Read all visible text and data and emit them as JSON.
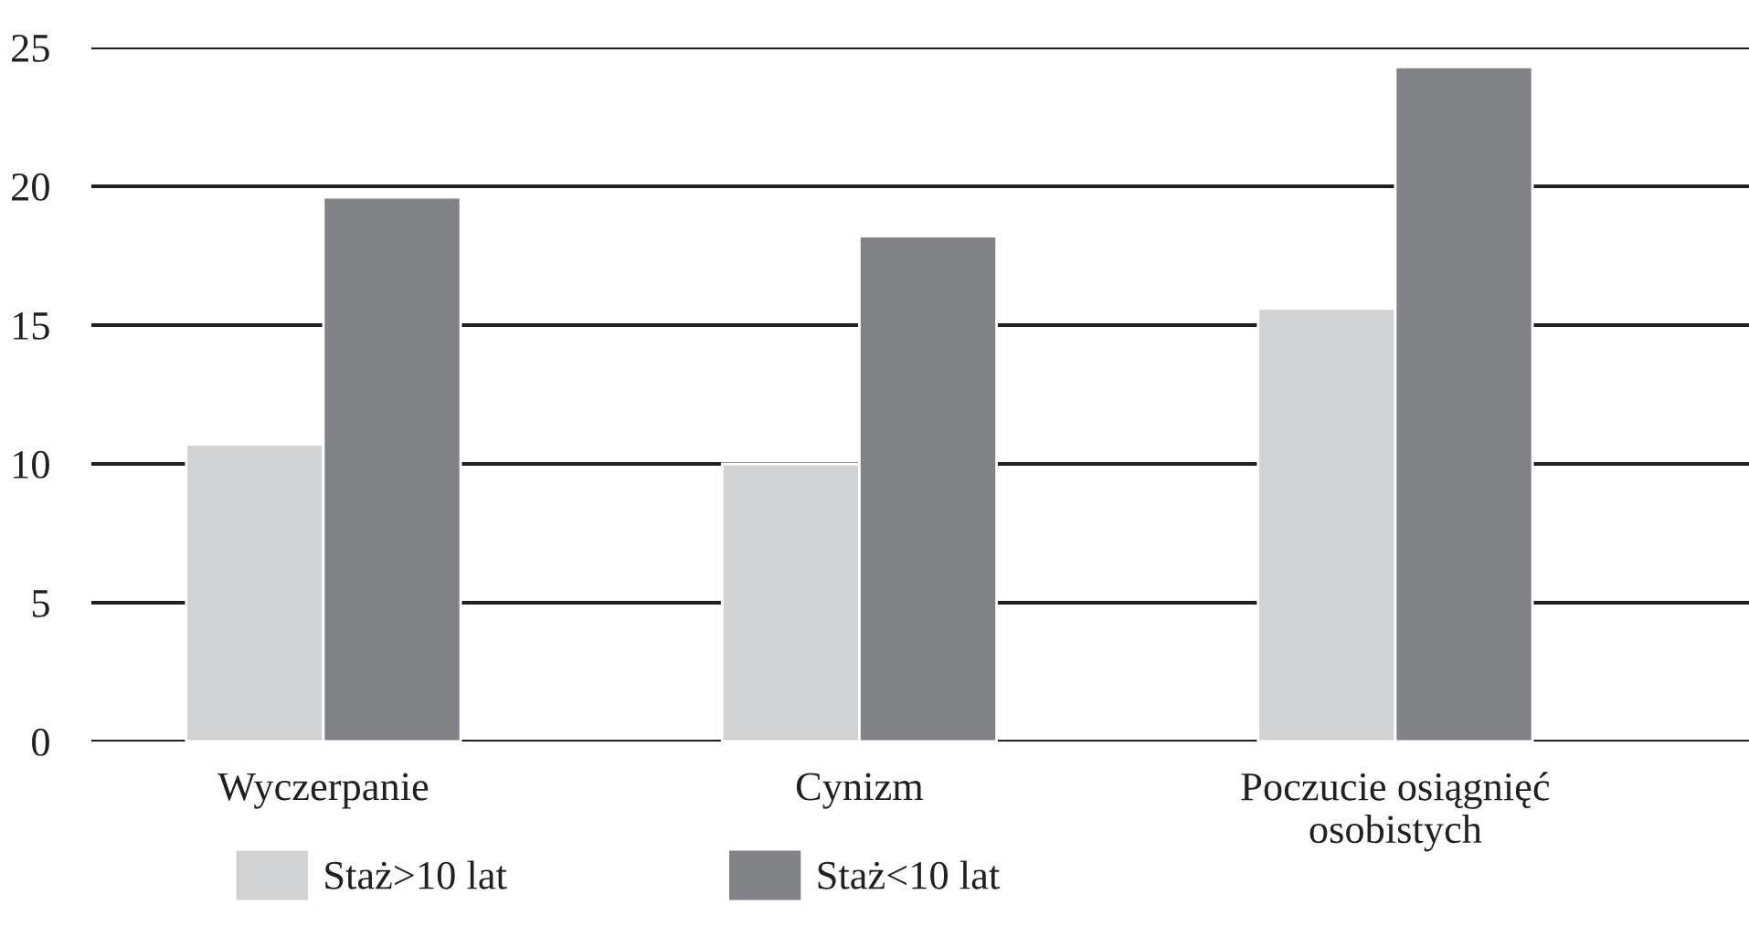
{
  "chart_data": {
    "type": "bar",
    "categories": [
      "Wyczerpanie",
      "Cynizm",
      "Poczucie osiągnięć\nosobistych"
    ],
    "series": [
      {
        "name": "Staż>10 lat",
        "color": "#d1d2d4",
        "values": [
          10.7,
          10.0,
          15.6
        ]
      },
      {
        "name": "Staż<10 lat",
        "color": "#818285",
        "values": [
          19.6,
          18.2,
          24.3
        ]
      }
    ],
    "ylim": [
      0,
      25
    ],
    "yticks": [
      0,
      5,
      10,
      15,
      20,
      25
    ],
    "grid": "y",
    "legend": "bottom left"
  }
}
